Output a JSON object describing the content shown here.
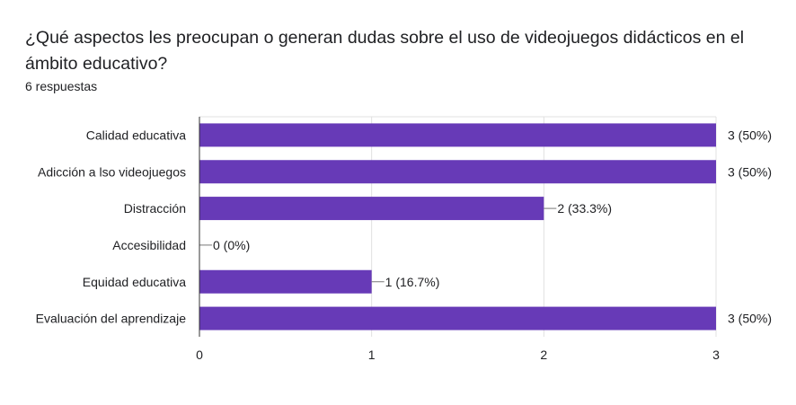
{
  "question": {
    "title": "¿Qué aspectos les preocupan o generan dudas sobre el uso de videojuegos didácticos en el ámbito educativo?",
    "responses": "6 respuestas"
  },
  "colors": {
    "bar": "#673ab7",
    "grid": "#e0e0e0",
    "axis": "#333333",
    "text": "#202124"
  },
  "chart_data": {
    "type": "bar",
    "orientation": "horizontal",
    "categories": [
      "Calidad educativa",
      "Adicción a lso videojuegos",
      "Distracción",
      "Accesibilidad",
      "Equidad educativa",
      "Evaluación del aprendizaje"
    ],
    "values": [
      3,
      3,
      2,
      0,
      1,
      3
    ],
    "data_labels": [
      "3 (50%)",
      "3 (50%)",
      "2 (33.3%)",
      "0 (0%)",
      "1 (16.7%)",
      "3 (50%)"
    ],
    "xlim": [
      0,
      3
    ],
    "xticks": [
      "0",
      "1",
      "2",
      "3"
    ],
    "grid": true
  }
}
